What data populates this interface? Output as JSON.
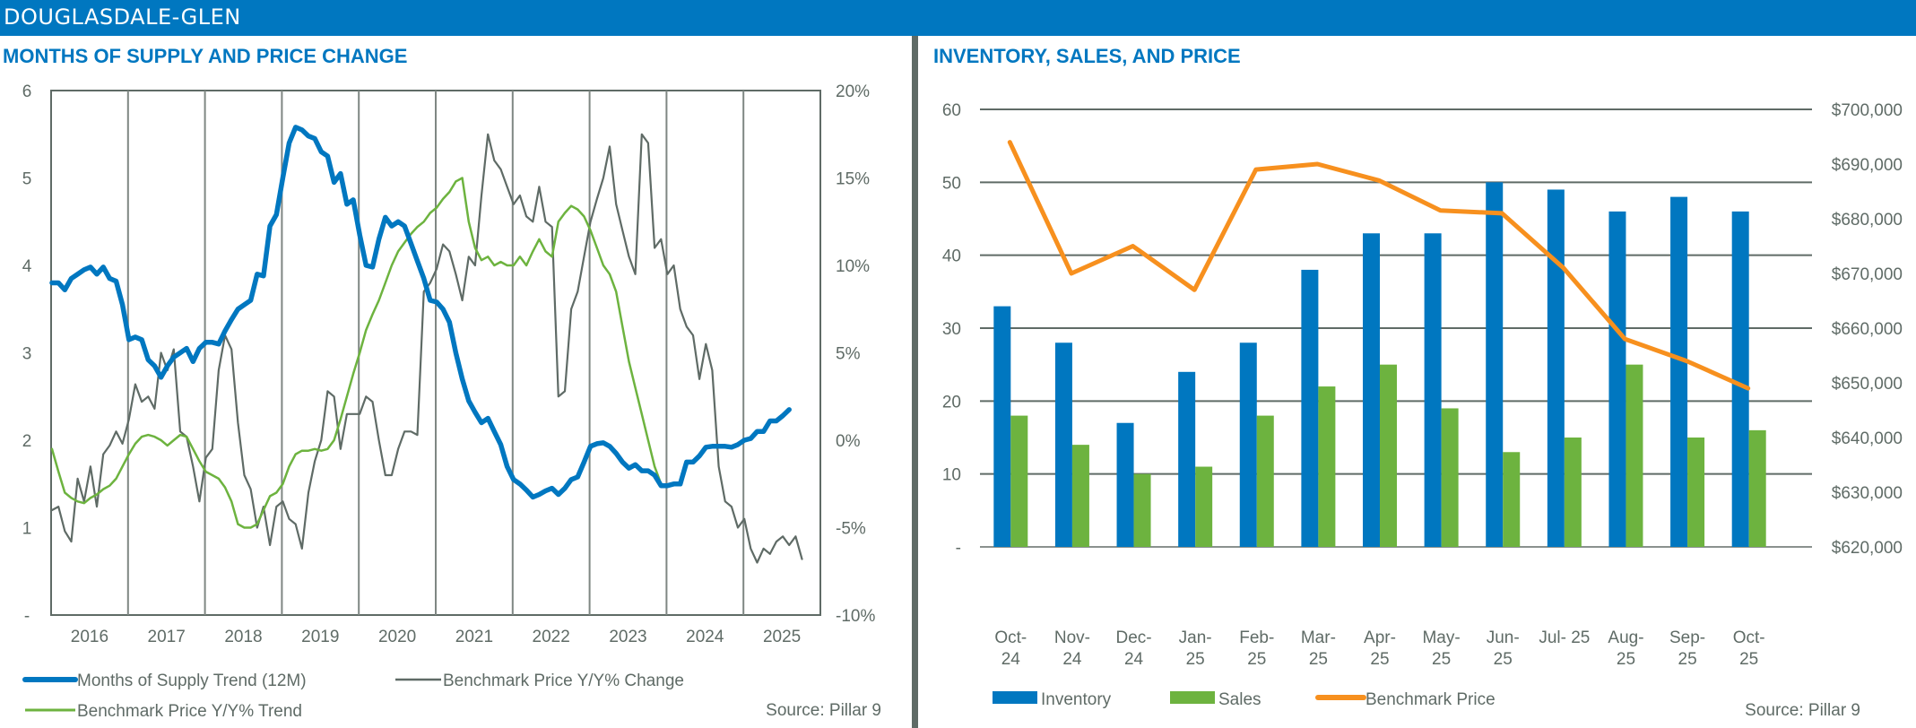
{
  "header": {
    "title": "DOUGLASDALE-GLEN"
  },
  "colors": {
    "brand": "#0077C0",
    "inventory": "#0077C0",
    "sales": "#6DB33F",
    "price": "#F7901E",
    "mos": "#0077C0",
    "yoy_change": "#5F6B66",
    "yoy_trend": "#6DB33F",
    "axis": "#5F6B66"
  },
  "chart_data": [
    {
      "type": "line",
      "title": "MONTHS OF SUPPLY AND PRICE CHANGE",
      "source": "Source: Pillar 9",
      "x_tick_labels": [
        "2016",
        "2017",
        "2018",
        "2019",
        "2020",
        "2021",
        "2022",
        "2023",
        "2024",
        "2025"
      ],
      "x_start": "2016-01",
      "x_end": "2025-10",
      "y_left": {
        "ticks": [
          "-",
          "1",
          "2",
          "3",
          "4",
          "5",
          "6"
        ],
        "range": [
          0,
          6
        ]
      },
      "y_right": {
        "ticks": [
          "-10%",
          "-5%",
          "0%",
          "5%",
          "10%",
          "15%",
          "20%"
        ],
        "range": [
          -10,
          20
        ]
      },
      "grid": "vertical-yearly",
      "legend": {
        "placement": "bottom",
        "items": [
          "Months of Supply Trend (12M)",
          "Benchmark Price Y/Y% Change",
          "Benchmark Price Y/Y% Trend"
        ]
      },
      "series": [
        {
          "name": "Months of Supply Trend (12M)",
          "axis": "left",
          "values": [
            3.8,
            3.8,
            3.72,
            3.85,
            3.9,
            3.95,
            3.98,
            3.9,
            3.98,
            3.85,
            3.82,
            3.55,
            3.15,
            3.18,
            3.15,
            2.92,
            2.85,
            2.72,
            2.85,
            2.95,
            3.0,
            3.05,
            2.9,
            3.05,
            3.12,
            3.12,
            3.1,
            3.25,
            3.38,
            3.5,
            3.55,
            3.6,
            3.9,
            3.88,
            4.45,
            4.58,
            5.0,
            5.4,
            5.58,
            5.55,
            5.48,
            5.45,
            5.3,
            5.25,
            4.95,
            5.05,
            4.7,
            4.75,
            4.35,
            4.0,
            3.98,
            4.3,
            4.55,
            4.45,
            4.5,
            4.45,
            4.25,
            4.05,
            3.85,
            3.6,
            3.58,
            3.5,
            3.35,
            3.0,
            2.7,
            2.45,
            2.32,
            2.2,
            2.25,
            2.1,
            1.95,
            1.7,
            1.55,
            1.5,
            1.43,
            1.35,
            1.38,
            1.42,
            1.45,
            1.38,
            1.45,
            1.55,
            1.58,
            1.75,
            1.93,
            1.96,
            1.97,
            1.93,
            1.85,
            1.75,
            1.68,
            1.72,
            1.65,
            1.65,
            1.6,
            1.48,
            1.48,
            1.5,
            1.5,
            1.75,
            1.75,
            1.82,
            1.92,
            1.93,
            1.93,
            1.93,
            1.92,
            1.95,
            2.0,
            2.02,
            2.1,
            2.1,
            2.22,
            2.22,
            2.28,
            2.35
          ]
        },
        {
          "name": "Benchmark Price Y/Y% Change",
          "axis": "right",
          "values": [
            -4,
            -3.8,
            -5.2,
            -5.8,
            -2.2,
            -3.5,
            -1.5,
            -3.8,
            -0.8,
            -0.3,
            0.5,
            -0.2,
            1.2,
            3.2,
            2.2,
            2.5,
            1.8,
            5.0,
            4.0,
            5.2,
            0.5,
            0.2,
            -1.5,
            -3.5,
            -1.0,
            -0.5,
            4.0,
            6.0,
            5.2,
            1.0,
            -2.0,
            -2.8,
            -5.0,
            -3.8,
            -6.0,
            -3.8,
            -3.5,
            -4.5,
            -4.8,
            -6.2,
            -3.0,
            -1.2,
            0.0,
            2.8,
            2.5,
            -0.5,
            1.5,
            1.5,
            1.5,
            2.5,
            2.2,
            0.0,
            -2.0,
            -2.0,
            -0.5,
            0.5,
            0.5,
            0.3,
            8.5,
            9.0,
            9.8,
            11.2,
            10.8,
            9.5,
            8.0,
            10.5,
            10.0,
            14.0,
            17.5,
            16.0,
            15.5,
            14.5,
            13.5,
            14.0,
            12.8,
            12.5,
            14.5,
            12.5,
            12.2,
            2.5,
            2.8,
            7.5,
            8.5,
            10.5,
            12.5,
            13.8,
            15.0,
            16.8,
            13.5,
            12.0,
            10.5,
            9.5,
            17.5,
            17.0,
            11.0,
            11.5,
            9.5,
            10.0,
            7.5,
            6.5,
            6.0,
            3.5,
            5.5,
            4.0,
            -1.5,
            -3.5,
            -3.8,
            -5.0,
            -4.5,
            -6.2,
            -7.0,
            -6.2,
            -6.5,
            -5.8,
            -5.5,
            -6.0,
            -5.5,
            -6.8
          ]
        },
        {
          "name": "Benchmark Price Y/Y% Trend",
          "axis": "right",
          "values": [
            -0.5,
            -1.8,
            -3.0,
            -3.3,
            -3.5,
            -3.6,
            -3.3,
            -3.1,
            -2.8,
            -2.6,
            -2.2,
            -1.5,
            -0.8,
            -0.2,
            0.2,
            0.3,
            0.2,
            0.0,
            -0.3,
            0.0,
            0.3,
            0.2,
            -0.5,
            -1.2,
            -1.8,
            -2.0,
            -2.2,
            -2.7,
            -3.5,
            -4.8,
            -5.0,
            -5.0,
            -4.8,
            -4.0,
            -3.2,
            -3.0,
            -2.5,
            -1.5,
            -0.8,
            -0.6,
            -0.6,
            -0.5,
            -0.6,
            -0.5,
            0.0,
            1.2,
            2.5,
            3.8,
            5.0,
            6.3,
            7.2,
            8.0,
            9.0,
            10.0,
            10.8,
            11.3,
            11.8,
            12.2,
            12.5,
            13.0,
            13.3,
            13.8,
            14.2,
            14.8,
            15.0,
            12.5,
            11.0,
            10.3,
            10.5,
            10.0,
            10.2,
            10.0,
            10.0,
            10.5,
            10.0,
            10.8,
            11.5,
            10.8,
            10.5,
            12.5,
            13.0,
            13.4,
            13.2,
            12.8,
            12.0,
            11.0,
            10.0,
            9.5,
            8.5,
            6.5,
            4.5,
            3.0,
            1.5,
            0.0,
            -1.5,
            -2.5
          ]
        }
      ]
    },
    {
      "type": "bar",
      "title": "INVENTORY, SALES, AND PRICE",
      "source": "Source: Pillar 9",
      "categories": [
        "Oct-24",
        "Nov-24",
        "Dec-24",
        "Jan-25",
        "Feb-25",
        "Mar-25",
        "Apr-25",
        "May-25",
        "Jun-25",
        "Jul- 25",
        "Aug-25",
        "Sep-25",
        "Oct-25"
      ],
      "category_labels": [
        [
          "Oct-",
          "24"
        ],
        [
          "Nov-",
          "24"
        ],
        [
          "Dec-",
          "24"
        ],
        [
          "Jan-",
          "25"
        ],
        [
          "Feb-",
          "25"
        ],
        [
          "Mar-",
          "25"
        ],
        [
          "Apr-",
          "25"
        ],
        [
          "May-",
          "25"
        ],
        [
          "Jun-",
          "25"
        ],
        [
          "Jul- 25",
          ""
        ],
        [
          "Aug-",
          "25"
        ],
        [
          "Sep-",
          "25"
        ],
        [
          "Oct-",
          "25"
        ]
      ],
      "y_left": {
        "ticks": [
          "-",
          "10",
          "20",
          "30",
          "40",
          "50",
          "60"
        ],
        "range": [
          0,
          60
        ]
      },
      "y_right": {
        "ticks": [
          "$620,000",
          "$630,000",
          "$640,000",
          "$650,000",
          "$660,000",
          "$670,000",
          "$680,000",
          "$690,000",
          "$700,000"
        ],
        "range": [
          620000,
          700000
        ]
      },
      "grid": "horizontal",
      "legend": {
        "placement": "bottom-left",
        "items": [
          "Inventory",
          "Sales",
          "Benchmark Price"
        ]
      },
      "series": [
        {
          "name": "Inventory",
          "kind": "bar",
          "axis": "left",
          "values": [
            33,
            28,
            17,
            24,
            28,
            38,
            43,
            43,
            50,
            49,
            46,
            48,
            46
          ]
        },
        {
          "name": "Sales",
          "kind": "bar",
          "axis": "left",
          "values": [
            18,
            14,
            10,
            11,
            18,
            22,
            25,
            19,
            13,
            15,
            25,
            15,
            16
          ]
        },
        {
          "name": "Benchmark Price",
          "kind": "line",
          "axis": "right",
          "values": [
            694000,
            670000,
            675000,
            667000,
            689000,
            690000,
            687000,
            681500,
            681000,
            671000,
            658000,
            654000,
            649000
          ]
        }
      ]
    }
  ]
}
